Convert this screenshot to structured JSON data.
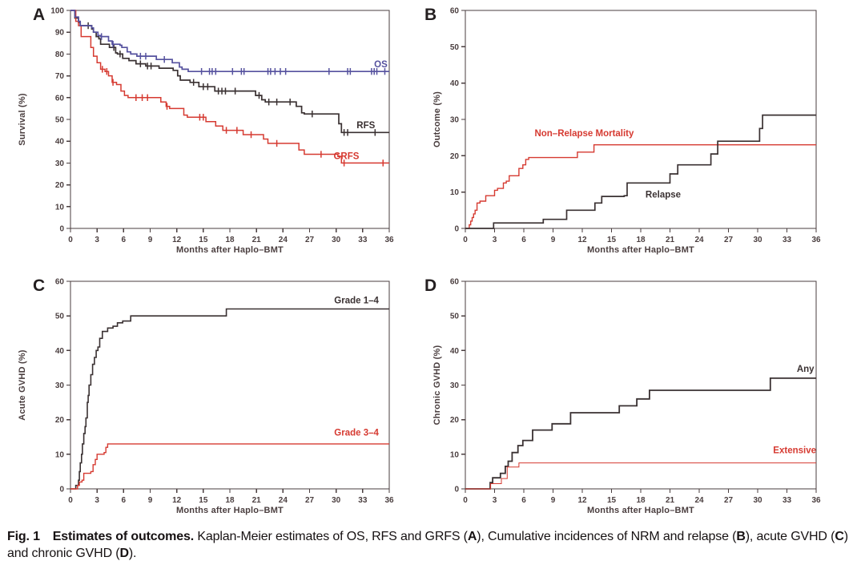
{
  "caption": {
    "segments": [
      {
        "text": "Fig. 1 Estimates of outcomes.",
        "bold": true
      },
      {
        "text": " Kaplan-Meier estimates of OS, RFS and GRFS (",
        "bold": false
      },
      {
        "text": "A",
        "bold": true
      },
      {
        "text": "), Cumulative incidences of NRM and relapse (",
        "bold": false
      },
      {
        "text": "B",
        "bold": true
      },
      {
        "text": "), acute GVHD (",
        "bold": false
      },
      {
        "text": "C",
        "bold": true
      },
      {
        "text": ") and chronic GVHD (",
        "bold": false
      },
      {
        "text": "D",
        "bold": true
      },
      {
        "text": ").",
        "bold": false
      }
    ]
  },
  "colors": {
    "axis": "#4a3e3f",
    "black_series": "#3a3132",
    "red_series": "#d63a31",
    "blue_series": "#55519e"
  },
  "chart_data": [
    {
      "panel_label": "A",
      "type": "line",
      "subtype": "kaplan-meier-step",
      "xlabel": "Months after Haplo–BMT",
      "ylabel": "Survival (%)",
      "xlim": [
        0,
        36
      ],
      "ylim": [
        0,
        100
      ],
      "xticks": [
        0,
        3,
        6,
        9,
        12,
        15,
        18,
        21,
        24,
        27,
        30,
        33,
        36
      ],
      "yticks": [
        0,
        10,
        20,
        30,
        40,
        50,
        60,
        70,
        80,
        90,
        100
      ],
      "grid": false,
      "series": [
        {
          "name": "RFS",
          "color": "#3a3132",
          "line_width": 1.7,
          "label": {
            "text": "RFS",
            "x": 34.4,
            "y": 47.5,
            "anchor": "end"
          },
          "points": [
            [
              0,
              100
            ],
            [
              0.5,
              96.5
            ],
            [
              0.9,
              94.5
            ],
            [
              1.1,
              93
            ],
            [
              2.4,
              91.5
            ],
            [
              2.6,
              90
            ],
            [
              2.9,
              88
            ],
            [
              3.2,
              87
            ],
            [
              3.4,
              84.5
            ],
            [
              4.4,
              83
            ],
            [
              5.1,
              80.5
            ],
            [
              5.3,
              80
            ],
            [
              5.9,
              78
            ],
            [
              6.6,
              77
            ],
            [
              7.4,
              75.5
            ],
            [
              8.5,
              74.5
            ],
            [
              10.0,
              73.5
            ],
            [
              11.6,
              72.5
            ],
            [
              12.1,
              70
            ],
            [
              12.4,
              68
            ],
            [
              13.5,
              67
            ],
            [
              14.5,
              65
            ],
            [
              16.3,
              63
            ],
            [
              20.9,
              61
            ],
            [
              21.6,
              59
            ],
            [
              22.0,
              58
            ],
            [
              25.5,
              56
            ],
            [
              26.1,
              53
            ],
            [
              26.4,
              52.5
            ],
            [
              30.3,
              48
            ],
            [
              30.6,
              44
            ],
            [
              36,
              44
            ]
          ],
          "censor_marks": [
            2.0,
            4.9,
            5.6,
            7.9,
            8.7,
            9.1,
            13.9,
            15.0,
            15.5,
            16.7,
            17.1,
            17.5,
            18.6,
            21.3,
            22.4,
            23.3,
            24.8,
            27.3,
            30.9,
            31.3,
            34.4
          ]
        },
        {
          "name": "GRFS",
          "color": "#d63a31",
          "line_width": 1.5,
          "label": {
            "text": "GRFS",
            "x": 32.6,
            "y": 33.2,
            "anchor": "end"
          },
          "points": [
            [
              0,
              100
            ],
            [
              0.6,
              95
            ],
            [
              0.9,
              93
            ],
            [
              1.2,
              88
            ],
            [
              2.3,
              83
            ],
            [
              2.6,
              79
            ],
            [
              3.0,
              76
            ],
            [
              3.4,
              73
            ],
            [
              3.9,
              72
            ],
            [
              4.3,
              70
            ],
            [
              4.7,
              67
            ],
            [
              5.2,
              66
            ],
            [
              5.7,
              63
            ],
            [
              6.1,
              61
            ],
            [
              6.5,
              60
            ],
            [
              10.2,
              58
            ],
            [
              10.8,
              56
            ],
            [
              11.2,
              55
            ],
            [
              12.8,
              52
            ],
            [
              13.2,
              51
            ],
            [
              15.3,
              49
            ],
            [
              16.4,
              47
            ],
            [
              17.2,
              45
            ],
            [
              19.5,
              43
            ],
            [
              21.8,
              41
            ],
            [
              22.3,
              39
            ],
            [
              25.8,
              36
            ],
            [
              26.4,
              34
            ],
            [
              30.2,
              33
            ],
            [
              30.6,
              30
            ],
            [
              36,
              30
            ]
          ],
          "censor_marks": [
            3.6,
            4.1,
            4.8,
            7.4,
            8.1,
            8.7,
            10.9,
            14.6,
            15.0,
            17.6,
            18.8,
            20.4,
            23.3,
            28.3,
            30.9,
            35.3
          ]
        },
        {
          "name": "OS",
          "color": "#55519e",
          "line_width": 1.7,
          "label": {
            "text": "OS",
            "x": 35.8,
            "y": 75.3,
            "anchor": "end"
          },
          "points": [
            [
              0,
              100
            ],
            [
              0.5,
              97
            ],
            [
              0.9,
              95
            ],
            [
              1.1,
              93
            ],
            [
              2.4,
              92
            ],
            [
              2.6,
              90
            ],
            [
              3.1,
              88.5
            ],
            [
              3.4,
              88
            ],
            [
              4.3,
              86
            ],
            [
              4.7,
              84.5
            ],
            [
              5.6,
              84
            ],
            [
              5.8,
              83
            ],
            [
              6.4,
              81
            ],
            [
              6.8,
              80
            ],
            [
              7.5,
              79
            ],
            [
              9.7,
              77.5
            ],
            [
              11.5,
              76
            ],
            [
              12.3,
              74
            ],
            [
              12.6,
              73
            ],
            [
              13.3,
              72
            ],
            [
              36,
              72
            ]
          ],
          "censor_marks": [
            3.5,
            4.8,
            7.9,
            8.5,
            10.6,
            14.8,
            15.7,
            16.0,
            16.4,
            18.3,
            19.3,
            19.6,
            22.3,
            22.6,
            23.1,
            23.7,
            24.3,
            29.2,
            31.3,
            31.6,
            34.0,
            34.3,
            34.6,
            35.5
          ]
        }
      ]
    },
    {
      "panel_label": "B",
      "type": "line",
      "subtype": "cumulative-incidence-step",
      "xlabel": "Months after Haplo–BMT",
      "ylabel": "Outcome (%)",
      "xlim": [
        0,
        36
      ],
      "ylim": [
        0,
        60
      ],
      "xticks": [
        0,
        3,
        6,
        9,
        12,
        15,
        18,
        21,
        24,
        27,
        30,
        33,
        36
      ],
      "yticks": [
        0,
        10,
        20,
        30,
        40,
        50,
        60
      ],
      "grid": false,
      "series": [
        {
          "name": "Non-Relapse Mortality",
          "color": "#d63a31",
          "line_width": 1.4,
          "label": {
            "text": "Non–Relapse Mortality",
            "x": 12.2,
            "y": 26.2,
            "anchor": "middle"
          },
          "points": [
            [
              0,
              0
            ],
            [
              0.4,
              1
            ],
            [
              0.55,
              2
            ],
            [
              0.7,
              3
            ],
            [
              0.85,
              4
            ],
            [
              1.0,
              5
            ],
            [
              1.2,
              7
            ],
            [
              1.5,
              7.5
            ],
            [
              2.1,
              9
            ],
            [
              3.0,
              10.5
            ],
            [
              3.3,
              11
            ],
            [
              3.9,
              12.5
            ],
            [
              4.2,
              13
            ],
            [
              4.5,
              14.5
            ],
            [
              5.5,
              16.5
            ],
            [
              5.9,
              17.5
            ],
            [
              6.2,
              19
            ],
            [
              6.5,
              19.5
            ],
            [
              11.5,
              21
            ],
            [
              13.2,
              23
            ],
            [
              36,
              23
            ]
          ],
          "censor_marks": []
        },
        {
          "name": "Relapse",
          "color": "#3a3132",
          "line_width": 1.7,
          "label": {
            "text": "Relapse",
            "x": 20.3,
            "y": 9.4,
            "anchor": "middle"
          },
          "points": [
            [
              0,
              0
            ],
            [
              2.9,
              1.5
            ],
            [
              8.0,
              2.5
            ],
            [
              10.4,
              5
            ],
            [
              13.3,
              7
            ],
            [
              14.0,
              8.8
            ],
            [
              16.3,
              9
            ],
            [
              16.6,
              12.5
            ],
            [
              21.0,
              15
            ],
            [
              21.8,
              17.5
            ],
            [
              25.2,
              20.5
            ],
            [
              25.9,
              24
            ],
            [
              30.2,
              27.5
            ],
            [
              30.5,
              31.2
            ],
            [
              36,
              31.2
            ]
          ],
          "censor_marks": []
        }
      ]
    },
    {
      "panel_label": "C",
      "type": "line",
      "subtype": "cumulative-incidence-step",
      "xlabel": "Months after Haplo–BMT",
      "ylabel": "Acute GVHD (%)",
      "xlim": [
        0,
        36
      ],
      "ylim": [
        0,
        60
      ],
      "xticks": [
        0,
        3,
        6,
        9,
        12,
        15,
        18,
        21,
        24,
        27,
        30,
        33,
        36
      ],
      "yticks": [
        0,
        10,
        20,
        30,
        40,
        50,
        60
      ],
      "grid": false,
      "series": [
        {
          "name": "Grade 1-4",
          "color": "#3a3132",
          "line_width": 1.6,
          "label": {
            "text": "Grade 1–4",
            "x": 32.3,
            "y": 54.5,
            "anchor": "middle"
          },
          "points": [
            [
              0,
              0
            ],
            [
              0.6,
              1
            ],
            [
              0.9,
              2.5
            ],
            [
              1.0,
              5
            ],
            [
              1.1,
              7.5
            ],
            [
              1.25,
              10
            ],
            [
              1.35,
              13
            ],
            [
              1.5,
              16
            ],
            [
              1.65,
              18
            ],
            [
              1.75,
              20.5
            ],
            [
              1.9,
              25
            ],
            [
              2.0,
              27
            ],
            [
              2.1,
              30
            ],
            [
              2.3,
              33
            ],
            [
              2.5,
              36
            ],
            [
              2.7,
              38
            ],
            [
              2.9,
              40
            ],
            [
              3.1,
              41
            ],
            [
              3.3,
              43.5
            ],
            [
              3.6,
              45.5
            ],
            [
              4.2,
              46.5
            ],
            [
              4.8,
              47
            ],
            [
              5.3,
              48
            ],
            [
              5.9,
              48.5
            ],
            [
              6.8,
              50
            ],
            [
              17.6,
              52
            ],
            [
              36,
              52
            ]
          ],
          "censor_marks": []
        },
        {
          "name": "Grade 3-4",
          "color": "#d63a31",
          "line_width": 1.4,
          "label": {
            "text": "Grade 3–4",
            "x": 32.3,
            "y": 16.3,
            "anchor": "middle"
          },
          "points": [
            [
              0,
              0
            ],
            [
              0.8,
              1
            ],
            [
              1.0,
              2
            ],
            [
              1.3,
              2.5
            ],
            [
              1.5,
              4.5
            ],
            [
              2.3,
              5
            ],
            [
              2.55,
              7
            ],
            [
              2.8,
              8.5
            ],
            [
              3.0,
              10
            ],
            [
              3.8,
              10.5
            ],
            [
              4.0,
              12
            ],
            [
              4.2,
              13
            ],
            [
              36,
              13
            ]
          ],
          "censor_marks": []
        }
      ]
    },
    {
      "panel_label": "D",
      "type": "line",
      "subtype": "cumulative-incidence-step",
      "xlabel": "Months after Haplo–BMT",
      "ylabel": "Chronic GVHD (%)",
      "xlim": [
        0,
        36
      ],
      "ylim": [
        0,
        60
      ],
      "xticks": [
        0,
        3,
        6,
        9,
        12,
        15,
        18,
        21,
        24,
        27,
        30,
        33,
        36
      ],
      "yticks": [
        0,
        10,
        20,
        30,
        40,
        50,
        60
      ],
      "grid": false,
      "series": [
        {
          "name": "Any",
          "color": "#3a3132",
          "line_width": 1.8,
          "label": {
            "text": "Any",
            "x": 35.8,
            "y": 34.8,
            "anchor": "end"
          },
          "points": [
            [
              0,
              0
            ],
            [
              2.55,
              1.8
            ],
            [
              2.8,
              3.2
            ],
            [
              3.6,
              4.5
            ],
            [
              4.1,
              6.5
            ],
            [
              4.4,
              8
            ],
            [
              4.8,
              10.5
            ],
            [
              5.4,
              12.5
            ],
            [
              5.9,
              14
            ],
            [
              6.9,
              17
            ],
            [
              8.9,
              18.8
            ],
            [
              10.8,
              22
            ],
            [
              15.8,
              24
            ],
            [
              17.6,
              26
            ],
            [
              18.9,
              28.5
            ],
            [
              31.3,
              32
            ],
            [
              36,
              32
            ]
          ],
          "censor_marks": []
        },
        {
          "name": "Extensive",
          "color": "#d63a31",
          "line_width": 1.0,
          "label": {
            "text": "Extensive",
            "x": 36.0,
            "y": 11.2,
            "anchor": "end"
          },
          "points": [
            [
              0,
              0
            ],
            [
              2.6,
              1.5
            ],
            [
              3.7,
              3
            ],
            [
              4.3,
              6.3
            ],
            [
              5.5,
              7.5
            ],
            [
              36,
              7.5
            ]
          ],
          "censor_marks": []
        }
      ]
    }
  ]
}
